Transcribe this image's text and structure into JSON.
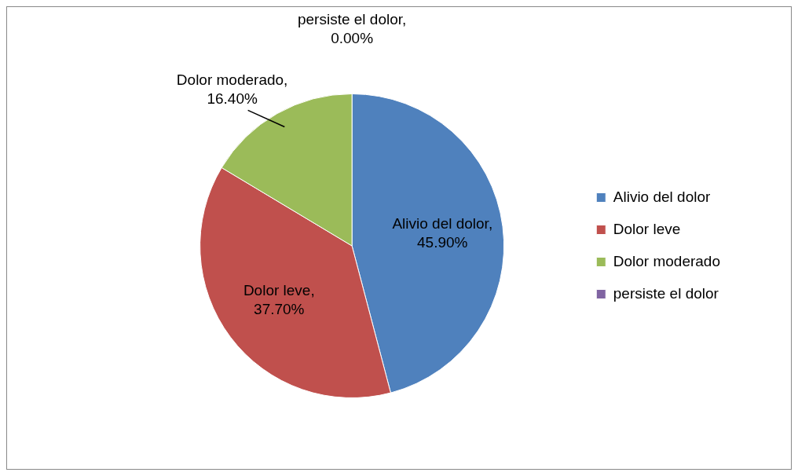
{
  "chart_data": {
    "type": "pie",
    "categories": [
      "Alivio del dolor",
      "Dolor leve",
      "Dolor moderado",
      "persiste el dolor"
    ],
    "values": [
      45.9,
      37.7,
      16.4,
      0
    ],
    "colors": [
      "#4f81bd",
      "#c0504d",
      "#9bbb59",
      "#8064a2"
    ],
    "value_labels": [
      "Alivio del dolor,\n45.90%",
      "Dolor leve,\n37.70%",
      "Dolor moderado,\n16.40%",
      "persiste el dolor,\n0.00%"
    ],
    "legend": "right"
  }
}
